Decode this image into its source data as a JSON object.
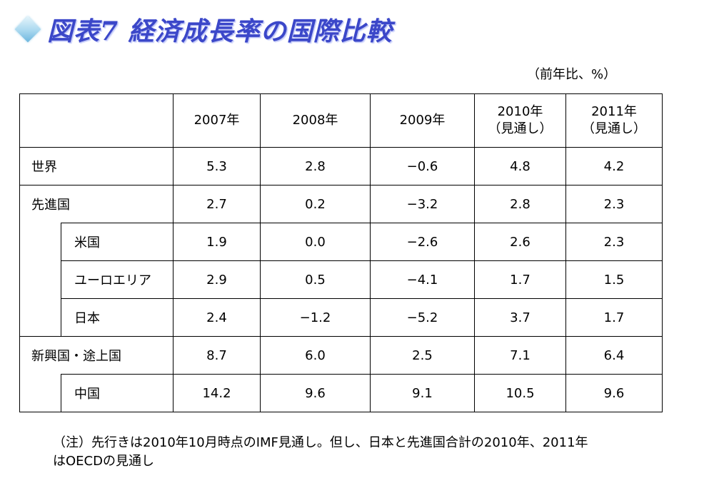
{
  "title": "図表7 経済成長率の国際比較",
  "unit": "（前年比、%）",
  "columns": [
    "2007年",
    "2008年",
    "2009年",
    "2010年\n（見通し）",
    "2011年\n（見通し）"
  ],
  "rows": [
    {
      "label": "世界",
      "values": [
        "5.3",
        "2.8",
        "−0.6",
        "4.8",
        "4.2"
      ]
    },
    {
      "label": "先進国",
      "values": [
        "2.7",
        "0.2",
        "−3.2",
        "2.8",
        "2.3"
      ]
    },
    {
      "label": "米国",
      "values": [
        "1.9",
        "0.0",
        "−2.6",
        "2.6",
        "2.3"
      ]
    },
    {
      "label": "ユーロエリア",
      "values": [
        "2.9",
        "0.5",
        "−4.1",
        "1.7",
        "1.5"
      ]
    },
    {
      "label": "日本",
      "values": [
        "2.4",
        "−1.2",
        "−5.2",
        "3.7",
        "1.7"
      ]
    },
    {
      "label": "新興国・途上国",
      "values": [
        "8.7",
        "6.0",
        "2.5",
        "7.1",
        "6.4"
      ]
    },
    {
      "label": "中国",
      "values": [
        "14.2",
        "9.6",
        "9.1",
        "10.5",
        "9.6"
      ]
    }
  ],
  "note_line1": "（注）先行きは2010年10月時点のIMF見通し。但し、日本と先進国合計の2010年、2011年",
  "note_line2": "はOECDの見通し"
}
